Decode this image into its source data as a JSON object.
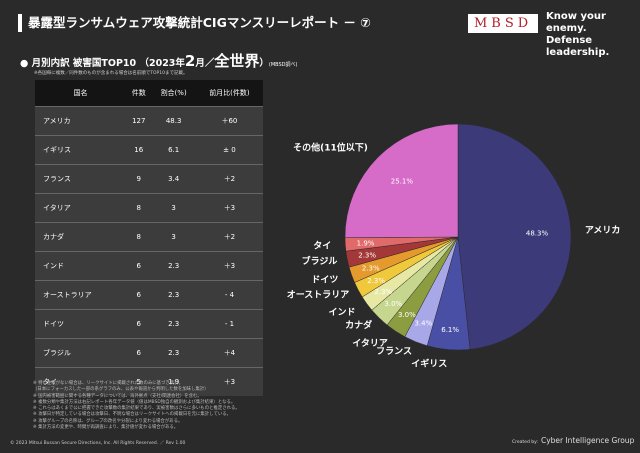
{
  "header": {
    "title": "暴露型ランサムウェア攻撃統計CIGマンスリーレポート － ⑦",
    "logo": "MBSD",
    "tagline": [
      "Know your enemy.",
      "Defense leadership."
    ]
  },
  "subtitle": {
    "label": "月別内訳 被害国TOP10",
    "open": "（2023年",
    "month": "2",
    "sep": "月／",
    "scope": "全世界",
    "close": "）",
    "source": "(MBSD調べ)"
  },
  "note": "※各国毎に複数／同件数のものが含まれる場合は名前順でTOP10まで記載。",
  "table": {
    "columns": [
      "国名",
      "件数",
      "割合(%)",
      "前月比(件数)"
    ],
    "rows": [
      [
        "アメリカ",
        127,
        48.3,
        "＋60"
      ],
      [
        "イギリス",
        16,
        6.1,
        "± 0"
      ],
      [
        "フランス",
        9,
        3.4,
        "＋2"
      ],
      [
        "イタリア",
        8,
        3.0,
        "＋3"
      ],
      [
        "カナダ",
        8,
        3.0,
        "＋2"
      ],
      [
        "インド",
        6,
        2.3,
        "＋3"
      ],
      [
        "オーストラリア",
        6,
        2.3,
        "- 4"
      ],
      [
        "ドイツ",
        6,
        2.3,
        "- 1"
      ],
      [
        "ブラジル",
        6,
        2.3,
        "＋4"
      ],
      [
        "タイ",
        5,
        1.9,
        "＋3"
      ]
    ]
  },
  "chart_data": {
    "type": "pie",
    "categories": [
      "アメリカ",
      "イギリス",
      "フランス",
      "イタリア",
      "カナダ",
      "インド",
      "オーストラリア",
      "ドイツ",
      "ブラジル",
      "タイ",
      "その他(11位以下)"
    ],
    "values": [
      48.3,
      6.1,
      3.4,
      3.0,
      3.0,
      2.3,
      2.3,
      2.3,
      2.3,
      1.9,
      25.1
    ],
    "value_labels": [
      "48.3%",
      "6.1%",
      "3.4%",
      "3.0%",
      "3.0%",
      "2.3%",
      "2.3%",
      "2.3%",
      "2.3%",
      "1.9%",
      "25.1%"
    ],
    "colors": [
      "#3c3a78",
      "#4a4fa6",
      "#a8a8e8",
      "#8c9c40",
      "#c6d68e",
      "#e6e8a4",
      "#f0c83c",
      "#e49a2c",
      "#a43838",
      "#e06a6a",
      "#d66cc8"
    ]
  },
  "footnotes": [
    "※ 特に注釈がない場合は、リークサイトに掲載された数のみに基づき集計。",
    "（日本にフォーカスした一部の系グラフのみ、公表や報道から判明した数を加味し集計）",
    "※ 国内被害範囲に関する各種データについては、海外拠点（支社/関連会社）を含む。",
    "※ 複数分類や集計方法は右記レポート各年データ値（値はMBSD独自の観測および集計結果）となる。",
    "※ これらはあくまで公に把握できた攻撃数の集計結果であり、実被害数はさらに多いものと推定される。",
    "※ 攻撃日が特定している場合は攻撃日、不明な場合はリークサイトへの掲載日を元に集計している。",
    "※ 攻撃グループの名称は、グループの改名や分裂により変わる場合がある。",
    "※ 集計方法の変更や、時間が再調査により、集計値が変わる場合がある。"
  ],
  "footer": {
    "copyright": "© 2023 Mitsui Bussan Secure Directions, Inc.  All Rights Reserved. ／ Rev 1.00",
    "credit_prefix": "Created by:",
    "credit": "Cyber Intelligence Group"
  }
}
